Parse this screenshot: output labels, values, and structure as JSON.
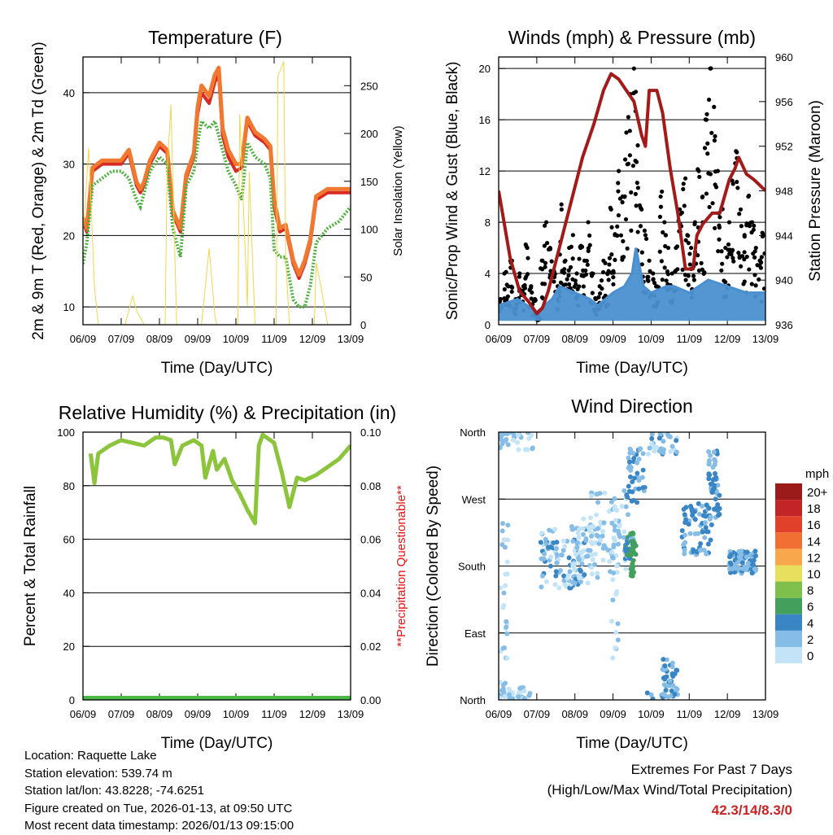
{
  "colors": {
    "temp2m": "#d62a22",
    "temp9m": "#f07830",
    "dew": "#4caf3c",
    "solar": "#f2d54a",
    "gust": "#000000",
    "wind": "#4a90d0",
    "pressure": "#a31a1a",
    "rh": "#8cc43c",
    "precip": "#4cb848",
    "note": "#ee1111",
    "extreme": "#cc2222"
  },
  "x_ticks": [
    "06/09",
    "07/09",
    "08/09",
    "09/09",
    "10/09",
    "11/09",
    "12/09",
    "13/09"
  ],
  "x_label": "Time (Day/UTC)",
  "chart_data": [
    {
      "id": "temperature",
      "type": "line",
      "title": "Temperature (F)",
      "xlabel": "Time (Day/UTC)",
      "ylabel": "2m & 9m T (Red, Orange) & 2m Td (Green)",
      "ylabel_right": "Solar Insolation (Yellow)",
      "xlim": [
        0,
        7
      ],
      "ylim": [
        7.5,
        45
      ],
      "ylim_right": [
        0,
        280
      ],
      "yticks": [
        10,
        20,
        30,
        40
      ],
      "yticks_right": [
        0,
        50,
        100,
        150,
        200,
        250
      ],
      "grid_y": [
        10,
        20,
        30,
        40
      ],
      "series": [
        {
          "name": "2m T",
          "color_key": "temp2m",
          "x": [
            0,
            0.1,
            0.25,
            0.5,
            0.75,
            1,
            1.2,
            1.4,
            1.5,
            1.6,
            1.75,
            2,
            2.2,
            2.35,
            2.55,
            2.7,
            2.9,
            3,
            3.1,
            3.3,
            3.45,
            3.55,
            3.65,
            3.8,
            4,
            4.15,
            4.3,
            4.5,
            4.75,
            4.9,
            5,
            5.15,
            5.3,
            5.5,
            5.65,
            5.8,
            5.95,
            6.1,
            6.4,
            6.7,
            7
          ],
          "values": [
            22,
            20.5,
            29,
            30,
            30,
            30,
            31.5,
            27,
            26,
            27,
            30,
            32.5,
            31.5,
            23,
            20.5,
            28,
            31,
            37,
            40,
            38.5,
            41.5,
            42.5,
            34,
            31,
            29,
            29.5,
            36,
            34,
            33,
            32,
            24,
            20.5,
            21,
            16,
            14,
            16,
            19,
            25,
            26,
            26,
            26
          ]
        },
        {
          "name": "9m T",
          "color_key": "temp9m",
          "x": [
            0,
            0.1,
            0.25,
            0.5,
            0.75,
            1,
            1.2,
            1.4,
            1.5,
            1.6,
            1.75,
            2,
            2.2,
            2.35,
            2.55,
            2.7,
            2.9,
            3,
            3.1,
            3.3,
            3.45,
            3.55,
            3.65,
            3.8,
            4,
            4.15,
            4.3,
            4.5,
            4.75,
            4.9,
            5,
            5.15,
            5.3,
            5.5,
            5.65,
            5.8,
            5.95,
            6.1,
            6.4,
            6.7,
            7
          ],
          "values": [
            22.5,
            21,
            29.5,
            30.5,
            30.5,
            30.5,
            32,
            27.5,
            26.5,
            27.5,
            30.5,
            33,
            32,
            23.5,
            21,
            28.5,
            31.5,
            38,
            41,
            39.5,
            42.5,
            43.5,
            35,
            32,
            30,
            30,
            36.5,
            34.5,
            33.5,
            32.5,
            25,
            21,
            21.5,
            16.5,
            14.5,
            16.5,
            19.5,
            25.5,
            26.5,
            26.5,
            26.5
          ]
        },
        {
          "name": "2m Td",
          "color_key": "dew",
          "x": [
            0,
            0.1,
            0.25,
            0.5,
            0.75,
            1,
            1.2,
            1.4,
            1.5,
            1.6,
            1.75,
            2,
            2.2,
            2.35,
            2.55,
            2.7,
            2.9,
            3,
            3.1,
            3.3,
            3.45,
            3.55,
            3.65,
            3.8,
            4,
            4.15,
            4.3,
            4.5,
            4.75,
            4.9,
            5,
            5.15,
            5.3,
            5.5,
            5.65,
            5.8,
            5.95,
            6.1,
            6.4,
            6.7,
            7
          ],
          "values": [
            16,
            19,
            27,
            28,
            29,
            29,
            28,
            25,
            24,
            26,
            29,
            31,
            30,
            21,
            17,
            27,
            29,
            33,
            36,
            35,
            36,
            34,
            32,
            29,
            27,
            25,
            33,
            31,
            30,
            28,
            18,
            17,
            17,
            11,
            10,
            10,
            13,
            19,
            21,
            22,
            24
          ]
        },
        {
          "name": "Solar",
          "color_key": "solar",
          "axis": "right",
          "x": [
            0,
            0.05,
            0.15,
            0.3,
            0.4,
            0.5,
            1.1,
            1.3,
            1.4,
            1.6,
            2.15,
            2.2,
            2.3,
            2.45,
            3.1,
            3.2,
            3.3,
            3.45,
            3.5,
            4.05,
            4.1,
            4.3,
            4.35,
            4.5,
            4.6,
            5.05,
            5.1,
            5.25,
            5.3,
            5.4,
            5.5,
            5.6,
            6.05,
            6.1,
            6.2,
            6.4,
            6.5,
            7
          ],
          "values": [
            100,
            120,
            185,
            40,
            0,
            0,
            0,
            30,
            15,
            0,
            0,
            160,
            230,
            0,
            0,
            40,
            80,
            10,
            0,
            0,
            220,
            20,
            160,
            0,
            0,
            0,
            260,
            275,
            70,
            0,
            0,
            0,
            0,
            65,
            45,
            0,
            0,
            0
          ]
        }
      ]
    },
    {
      "id": "winds",
      "type": "scatter",
      "title": "Winds (mph) & Pressure (mb)",
      "xlabel": "Time (Day/UTC)",
      "ylabel": "Sonic/Prop Wind & Gust (Blue, Black)",
      "ylabel_right": "Station Pressure (Maroon)",
      "xlim": [
        0,
        7
      ],
      "ylim": [
        0,
        20.9
      ],
      "ylim_right": [
        936,
        960
      ],
      "yticks": [
        0,
        4,
        8,
        12,
        16,
        20
      ],
      "yticks_right": [
        936,
        940,
        944,
        948,
        952,
        956,
        960
      ],
      "grid_y": [
        0,
        4,
        8,
        12,
        16,
        20
      ],
      "series": [
        {
          "name": "Gust",
          "color_key": "gust",
          "x": [
            0.05,
            0.15,
            0.25,
            0.35,
            0.45,
            0.55,
            0.65,
            0.75,
            0.85,
            0.95,
            1.05,
            1.15,
            1.25,
            1.35,
            1.45,
            1.55,
            1.65,
            1.75,
            1.85,
            1.95,
            2.05,
            2.15,
            2.25,
            2.35,
            2.45,
            2.55,
            2.65,
            2.75,
            2.85,
            2.95,
            3.05,
            3.15,
            3.25,
            3.35,
            3.45,
            3.55,
            3.65,
            3.75,
            3.85,
            3.95,
            4.05,
            4.15,
            4.25,
            4.35,
            4.45,
            4.55,
            4.65,
            4.75,
            4.85,
            4.95,
            5.05,
            5.15,
            5.25,
            5.35,
            5.45,
            5.55,
            5.65,
            5.75,
            5.85,
            5.95,
            6.05,
            6.15,
            6.25,
            6.35,
            6.45,
            6.55,
            6.65,
            6.75,
            6.85,
            6.95
          ],
          "values": [
            2,
            4,
            3,
            5,
            2,
            4,
            3,
            6,
            3,
            2,
            1,
            5,
            8,
            6,
            4,
            3,
            9,
            5,
            6,
            7,
            4,
            6,
            5,
            8,
            4,
            2,
            3,
            5,
            4,
            9,
            7,
            12,
            10,
            15,
            18,
            20,
            14,
            9,
            7,
            5,
            4,
            3,
            10,
            8,
            6,
            4,
            6,
            9,
            11,
            7,
            6,
            8,
            12,
            10,
            16,
            20,
            17,
            12,
            9,
            6,
            8,
            11,
            13,
            9,
            7,
            10,
            8,
            6,
            5,
            7
          ]
        },
        {
          "name": "Wind",
          "color_key": "wind",
          "x": [
            0,
            0.5,
            1,
            1.4,
            1.6,
            2,
            2.4,
            2.6,
            3,
            3.3,
            3.5,
            3.6,
            3.8,
            4,
            4.4,
            4.6,
            5,
            5.5,
            6,
            6.5,
            7
          ],
          "values": [
            1.5,
            2,
            1,
            2,
            3,
            2.5,
            2,
            1.5,
            2.5,
            3,
            4,
            6,
            3,
            2.5,
            3,
            3,
            2.5,
            3.5,
            3,
            2.5,
            2.5
          ]
        },
        {
          "name": "Pressure",
          "color_key": "pressure",
          "axis": "right",
          "x": [
            0,
            0.1,
            0.3,
            0.55,
            0.8,
            1,
            1.15,
            1.3,
            1.6,
            1.9,
            2.2,
            2.5,
            2.75,
            2.95,
            3.15,
            3.35,
            3.55,
            3.75,
            3.85,
            3.95,
            4.15,
            4.3,
            4.5,
            4.7,
            4.9,
            5.1,
            5.2,
            5.35,
            5.6,
            5.8,
            6.05,
            6.2,
            6.3,
            6.5,
            6.7,
            6.85,
            7
          ],
          "values": [
            948,
            946,
            942,
            939,
            938,
            937,
            937.5,
            939,
            943,
            947,
            951,
            954,
            957,
            958.5,
            958,
            957,
            956,
            953,
            952,
            957,
            957,
            955,
            950,
            946,
            941,
            941,
            944,
            945,
            946,
            946,
            949,
            950,
            951,
            949.5,
            949,
            948.5,
            948
          ]
        }
      ]
    },
    {
      "id": "humidity",
      "type": "line",
      "title": "Relative Humidity (%) & Precipitation (in)",
      "xlabel": "Time (Day/UTC)",
      "ylabel": "Percent & Total Rainfall",
      "ylabel_right": "**Precipitation Questionable**",
      "xlim": [
        0,
        7
      ],
      "ylim": [
        0,
        100
      ],
      "ylim_right": [
        0,
        0.1
      ],
      "yticks": [
        0,
        20,
        40,
        60,
        80,
        100
      ],
      "yticks_right": [
        "0.00",
        "0.02",
        "0.04",
        "0.06",
        "0.08",
        "0.10"
      ],
      "grid_y": [
        0,
        20,
        40,
        60,
        80,
        100
      ],
      "series": [
        {
          "name": "RH",
          "color_key": "rh",
          "x": [
            0.2,
            0.3,
            0.4,
            0.5,
            0.7,
            1,
            1.3,
            1.6,
            1.9,
            2.1,
            2.3,
            2.4,
            2.6,
            2.9,
            3.1,
            3.2,
            3.4,
            3.5,
            3.7,
            3.9,
            4.1,
            4.3,
            4.5,
            4.6,
            4.7,
            4.8,
            5,
            5.2,
            5.4,
            5.6,
            5.8,
            6.1,
            6.4,
            6.7,
            7
          ],
          "values": [
            92,
            81,
            92,
            93,
            95,
            97,
            96,
            95,
            98,
            98,
            97,
            88,
            95,
            97,
            95,
            83,
            93,
            86,
            90,
            82,
            77,
            71,
            66,
            95,
            99,
            98,
            96,
            85,
            72,
            83,
            82,
            84,
            87,
            90,
            95
          ]
        },
        {
          "name": "Precip",
          "color_key": "precip",
          "x": [
            0,
            7
          ],
          "values": [
            0,
            0
          ]
        }
      ]
    },
    {
      "id": "wind_direction",
      "type": "scatter",
      "title": "Wind Direction",
      "xlabel": "Time (Day/UTC)",
      "ylabel": "Direction (Colored By Speed)",
      "xlim": [
        0,
        7
      ],
      "ylim": [
        0,
        360
      ],
      "yticks": [
        "North",
        "East",
        "South",
        "West",
        "North"
      ],
      "ytick_values": [
        0,
        90,
        180,
        270,
        360
      ],
      "legend_title": "mph",
      "legend": [
        {
          "label": "20+",
          "color": "#9b1b1b"
        },
        {
          "label": "18",
          "color": "#c32425"
        },
        {
          "label": "16",
          "color": "#e1412b"
        },
        {
          "label": "14",
          "color": "#f16f33"
        },
        {
          "label": "12",
          "color": "#f9a74c"
        },
        {
          "label": "10",
          "color": "#e9df5e"
        },
        {
          "label": "8",
          "color": "#7fbf4b"
        },
        {
          "label": "6",
          "color": "#43a05c"
        },
        {
          "label": "4",
          "color": "#3a86c4"
        },
        {
          "label": "2",
          "color": "#86bde6"
        },
        {
          "label": "0",
          "color": "#c3e4f7"
        }
      ]
    }
  ],
  "meta": {
    "location": "Location: Raquette Lake",
    "elevation": "Station elevation: 539.74 m",
    "latlon": "Station lat/lon: 43.8228; -74.6251",
    "created": "Figure created on Tue, 2026-01-13, at 09:50 UTC",
    "recent": "Most recent data timestamp: 2026/01/13 09:15:00"
  },
  "extremes": {
    "line1": "Extremes For Past 7 Days",
    "line2": "(High/Low/Max Wind/Total Precipitation)",
    "value": "42.3/14/8.3/0"
  }
}
